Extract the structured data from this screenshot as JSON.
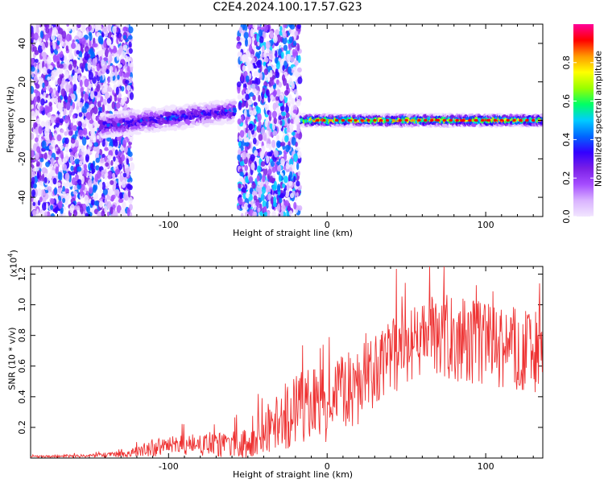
{
  "title": "C2E4.2024.100.17.57.G23",
  "colors": {
    "snr_line": "#ee3333",
    "colormap": [
      "#f2e6ff",
      "#d9b3ff",
      "#a64dff",
      "#7a1fe6",
      "#3300ff",
      "#0066ff",
      "#00ccff",
      "#00ff66",
      "#99ff00",
      "#ffff00",
      "#ff9900",
      "#ff0000",
      "#ff0099"
    ]
  },
  "chart_data": [
    {
      "type": "heatmap",
      "xlabel": "Height of straight line (km)",
      "ylabel": "Frequency (Hz)",
      "xlim": [
        -187,
        136
      ],
      "ylim": [
        -50,
        50
      ],
      "xticks": [
        -100,
        0,
        100
      ],
      "yticks": [
        40,
        20,
        0,
        -20,
        -40
      ],
      "colorbar": {
        "label": "Normalized spectral amplitude",
        "range": [
          0,
          1
        ],
        "ticks": [
          "0.0",
          "0.2",
          "0.4",
          "0.6",
          "0.8"
        ]
      },
      "regions": [
        {
          "x": [
            -187,
            -123
          ],
          "kind": "broadband-noise",
          "level": 0.3
        },
        {
          "x": [
            -143,
            -58
          ],
          "kind": "signal-trace",
          "freq_start": -3,
          "freq_end": 5,
          "level": 0.45
        },
        {
          "x": [
            -56,
            -17
          ],
          "kind": "broadband-noise",
          "level": 0.35
        },
        {
          "x": [
            -16,
            136
          ],
          "kind": "signal-trace",
          "freq_start": 0,
          "freq_end": 0,
          "level": 0.95
        }
      ]
    },
    {
      "type": "line",
      "xlabel": "Height of straight line (km)",
      "ylabel": "SNR (10 * v/v)",
      "yscale_label": "(x10",
      "yscale_exp": "4",
      "xlim": [
        -187,
        136
      ],
      "ylim": [
        0,
        1.25
      ],
      "xticks": [
        -100,
        0,
        100
      ],
      "yticks": [
        0.2,
        0.4,
        0.6,
        0.8,
        1.0,
        1.2
      ],
      "yticklabels": [
        "0.2",
        "0.4",
        "0.6",
        "0.8",
        "1.0",
        "1.2"
      ],
      "envelope": {
        "x": [
          -187,
          -150,
          -125,
          -110,
          -90,
          -70,
          -50,
          -40,
          -30,
          -20,
          -10,
          0,
          10,
          20,
          30,
          50,
          70,
          90,
          110,
          136
        ],
        "mean": [
          0.01,
          0.015,
          0.03,
          0.07,
          0.09,
          0.09,
          0.1,
          0.17,
          0.26,
          0.33,
          0.36,
          0.38,
          0.47,
          0.5,
          0.58,
          0.75,
          0.84,
          0.78,
          0.75,
          0.72
        ],
        "spread": [
          0.006,
          0.01,
          0.025,
          0.06,
          0.07,
          0.08,
          0.1,
          0.15,
          0.2,
          0.24,
          0.25,
          0.25,
          0.25,
          0.26,
          0.26,
          0.26,
          0.27,
          0.28,
          0.28,
          0.28
        ]
      }
    }
  ]
}
